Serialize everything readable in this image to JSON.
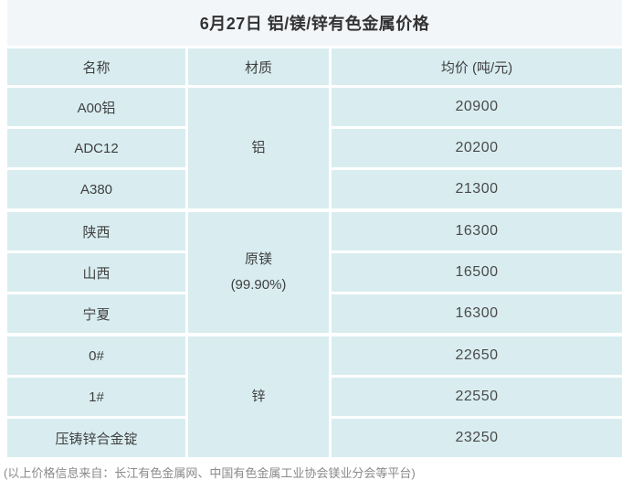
{
  "title": "6月27日 铝/镁/锌有色金属价格",
  "table": {
    "headers": {
      "name": "名称",
      "material": "材质",
      "price": "均价 (吨/元)"
    },
    "groups": [
      {
        "material": "铝",
        "material_note": "",
        "rows": [
          {
            "name": "A00铝",
            "price": "20900"
          },
          {
            "name": "ADC12",
            "price": "20200"
          },
          {
            "name": "A380",
            "price": "21300"
          }
        ]
      },
      {
        "material": "原镁",
        "material_note": "(99.90%)",
        "rows": [
          {
            "name": "陕西",
            "price": "16300"
          },
          {
            "name": "山西",
            "price": "16500"
          },
          {
            "name": "宁夏",
            "price": "16300"
          }
        ]
      },
      {
        "material": "锌",
        "material_note": "",
        "rows": [
          {
            "name": "0#",
            "price": "22650"
          },
          {
            "name": "1#",
            "price": "22550"
          },
          {
            "name": "压铸锌合金锭",
            "price": "23250"
          }
        ]
      }
    ]
  },
  "footer": "(以上价格信息来自：长江有色金属网、中国有色金属工业协会镁业分会等平台)",
  "colors": {
    "cell_bg": "#d9edf0",
    "title_bg": "#f3f6f9",
    "text": "#3f3f3f",
    "number_text": "#4a4a4a",
    "footer_text": "#8a8a8a",
    "divider": "#ffffff"
  }
}
